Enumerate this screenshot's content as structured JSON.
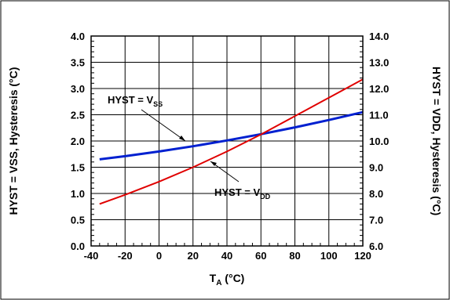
{
  "chart_data": {
    "type": "line",
    "xlabel_main": "T",
    "xlabel_sub": "A",
    "xlabel_unit": " (°C)",
    "ylabel_left": "HYST = VSS, Hysteresis (°C)",
    "ylabel_right": "HYST = VDD, Hysteresis (°C)",
    "xlim": [
      -40,
      120
    ],
    "ylim_left": [
      0.0,
      4.0
    ],
    "ylim_right": [
      6.0,
      14.0
    ],
    "x_ticks": [
      "-40",
      "-20",
      "0",
      "20",
      "40",
      "60",
      "80",
      "100",
      "120"
    ],
    "y_ticks_left": [
      "0.0",
      "0.5",
      "1.0",
      "1.5",
      "2.0",
      "2.5",
      "3.0",
      "3.5",
      "4.0"
    ],
    "y_ticks_right": [
      "6.0",
      "7.0",
      "8.0",
      "9.0",
      "10.0",
      "11.0",
      "12.0",
      "13.0",
      "14.0"
    ],
    "grid": true,
    "series": [
      {
        "name": "HYST = VSS",
        "axis": "left",
        "color": "#0020d0",
        "x": [
          -35,
          -20,
          0,
          20,
          40,
          60,
          80,
          100,
          120
        ],
        "y": [
          1.65,
          1.71,
          1.8,
          1.9,
          2.01,
          2.13,
          2.26,
          2.4,
          2.55
        ]
      },
      {
        "name": "HYST = VDD",
        "axis": "right",
        "color": "#e00000",
        "x": [
          -35,
          -20,
          0,
          20,
          40,
          60,
          80,
          100,
          120
        ],
        "y": [
          7.6,
          7.95,
          8.45,
          9.0,
          9.6,
          10.25,
          10.95,
          11.65,
          12.35
        ]
      }
    ],
    "annotations": [
      {
        "main": "HYST = V",
        "sub": "SS"
      },
      {
        "main": "HYST = V",
        "sub": "DD"
      }
    ]
  }
}
